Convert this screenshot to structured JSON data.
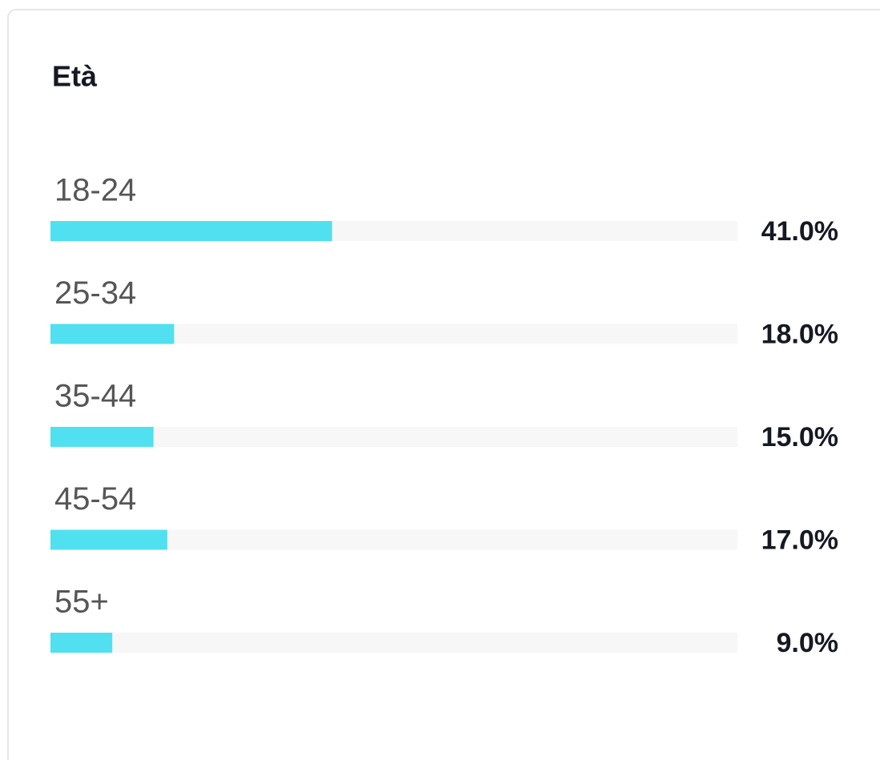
{
  "chart_data": {
    "type": "bar",
    "orientation": "horizontal",
    "title": "Età",
    "categories": [
      "18-24",
      "25-34",
      "35-44",
      "45-54",
      "55+"
    ],
    "values": [
      41,
      18,
      15,
      17,
      9
    ],
    "value_labels": [
      "41.0%",
      "18.0%",
      "15.0%",
      "17.0%",
      "9.0%"
    ],
    "color": "#50e0ef",
    "track_color": "#f7f7f8",
    "xlim": [
      0,
      100
    ]
  }
}
